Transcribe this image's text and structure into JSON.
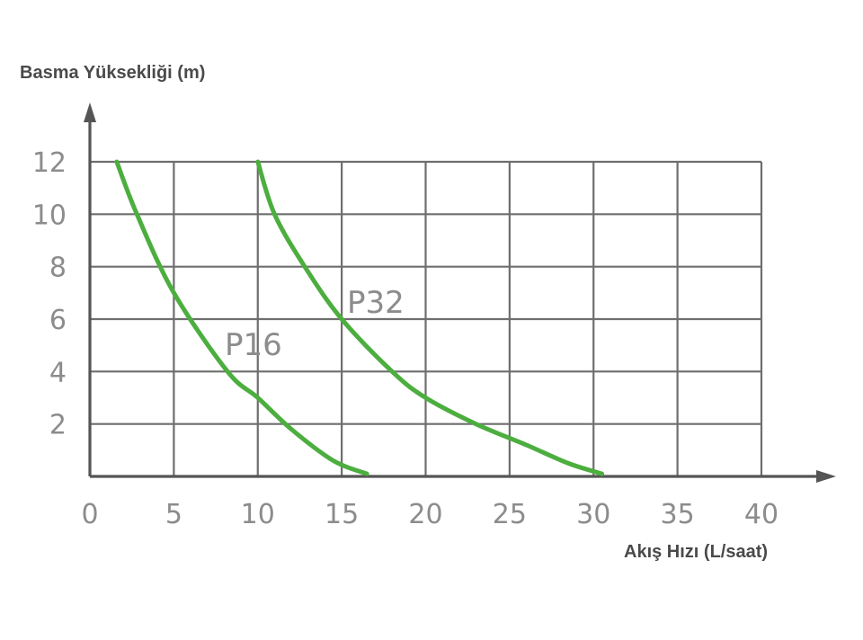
{
  "chart_data": {
    "type": "line",
    "title": "",
    "xlabel": "Akış Hızı (L/saat)",
    "ylabel": "Basma Yüksekliği (m)",
    "xlim": [
      0,
      40
    ],
    "ylim": [
      0,
      12
    ],
    "x_ticks": [
      "0",
      "5",
      "10",
      "15",
      "20",
      "25",
      "30",
      "35",
      "40"
    ],
    "y_ticks": [
      "2",
      "4",
      "6",
      "8",
      "10",
      "12"
    ],
    "grid": true,
    "curve_color": "#4cae3f",
    "series": [
      {
        "name": "P16",
        "x": [
          1.6,
          2.8,
          5.0,
          8.2,
          10.0,
          12.0,
          14.5,
          16.5
        ],
        "y": [
          12.0,
          10.0,
          7.0,
          4.0,
          3.0,
          1.8,
          0.6,
          0.1
        ]
      },
      {
        "name": "P32",
        "x": [
          10.0,
          11.0,
          12.8,
          15.0,
          18.0,
          20.0,
          23.0,
          26.0,
          28.5,
          30.5
        ],
        "y": [
          12.0,
          10.0,
          8.0,
          6.0,
          4.0,
          3.0,
          2.0,
          1.2,
          0.5,
          0.1
        ]
      }
    ]
  }
}
